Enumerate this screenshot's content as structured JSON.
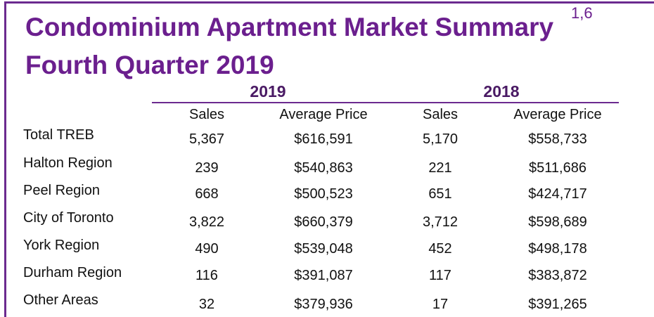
{
  "title_line1": "Condominium Apartment Market Summary",
  "title_superscript": "1,6",
  "title_line2": "Fourth Quarter 2019",
  "years": [
    "2019",
    "2018"
  ],
  "column_headers": [
    "Sales",
    "Average Price",
    "Sales",
    "Average Price"
  ],
  "rows": [
    {
      "label": "Total TREB",
      "values": [
        "5,367",
        "$616,591",
        "5,170",
        "$558,733"
      ]
    },
    {
      "label": "Halton Region",
      "values": [
        "239",
        "$540,863",
        "221",
        "$511,686"
      ]
    },
    {
      "label": "Peel Region",
      "values": [
        "668",
        "$500,523",
        "651",
        "$424,717"
      ]
    },
    {
      "label": "City of Toronto",
      "values": [
        "3,822",
        "$660,379",
        "3,712",
        "$598,689"
      ]
    },
    {
      "label": "York Region",
      "values": [
        "490",
        "$539,048",
        "452",
        "$498,178"
      ]
    },
    {
      "label": "Durham Region",
      "values": [
        "116",
        "$391,087",
        "117",
        "$383,872"
      ]
    },
    {
      "label": "Other Areas",
      "values": [
        "32",
        "$379,936",
        "17",
        "$391,265"
      ]
    }
  ],
  "colors": {
    "accent": "#6b1f8e",
    "rule": "#6b2a8f"
  }
}
